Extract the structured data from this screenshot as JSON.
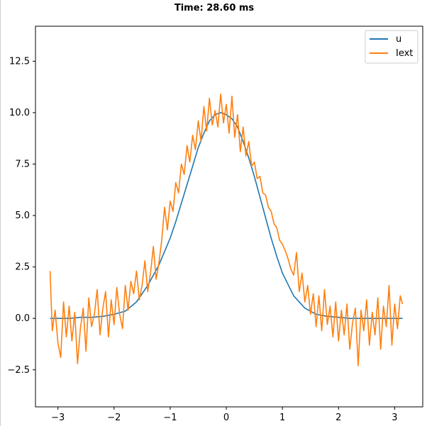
{
  "chart_data": {
    "type": "line",
    "title": "Time: 28.60 ms",
    "xlabel": "",
    "ylabel": "",
    "xlim": [
      -3.4,
      3.5
    ],
    "ylim": [
      -4.3,
      14.2
    ],
    "xticks": [
      -3,
      -2,
      -1,
      0,
      1,
      2,
      3
    ],
    "yticks": [
      -2.5,
      0.0,
      2.5,
      5.0,
      7.5,
      10.0,
      12.5
    ],
    "xtick_labels": [
      "−3",
      "−2",
      "−1",
      "0",
      "1",
      "2",
      "3"
    ],
    "ytick_labels": [
      "−2.5",
      "0.0",
      "2.5",
      "5.0",
      "7.5",
      "10.0",
      "12.5"
    ],
    "grid": false,
    "legend_position": "top-right",
    "series": [
      {
        "name": "u",
        "color": "#1f77b4",
        "description_free": true,
        "x": [
          -3.14,
          -3.0,
          -2.8,
          -2.6,
          -2.4,
          -2.2,
          -2.0,
          -1.8,
          -1.6,
          -1.4,
          -1.2,
          -1.0,
          -0.9,
          -0.8,
          -0.7,
          -0.6,
          -0.5,
          -0.4,
          -0.3,
          -0.2,
          -0.1,
          0.0,
          0.1,
          0.2,
          0.3,
          0.4,
          0.5,
          0.6,
          0.7,
          0.8,
          0.9,
          1.0,
          1.2,
          1.4,
          1.6,
          1.8,
          2.0,
          2.2,
          2.4,
          2.6,
          2.8,
          3.0,
          3.14
        ],
        "y": [
          0.0,
          0.0,
          0.0,
          0.05,
          0.05,
          0.1,
          0.2,
          0.35,
          0.8,
          1.6,
          2.6,
          3.9,
          4.7,
          5.6,
          6.5,
          7.4,
          8.3,
          9.0,
          9.6,
          9.9,
          10.0,
          9.9,
          9.7,
          9.3,
          8.6,
          7.8,
          6.9,
          5.9,
          4.9,
          3.9,
          3.0,
          2.2,
          1.1,
          0.5,
          0.2,
          0.1,
          0.05,
          0.0,
          0.0,
          0.0,
          0.0,
          0.0,
          0.0
        ]
      },
      {
        "name": "Iext",
        "color": "#ff7f0e",
        "x": [
          -3.14,
          -3.1,
          -3.05,
          -3.0,
          -2.95,
          -2.9,
          -2.85,
          -2.8,
          -2.75,
          -2.7,
          -2.65,
          -2.6,
          -2.55,
          -2.5,
          -2.45,
          -2.4,
          -2.35,
          -2.3,
          -2.25,
          -2.2,
          -2.15,
          -2.1,
          -2.05,
          -2.0,
          -1.95,
          -1.9,
          -1.85,
          -1.8,
          -1.75,
          -1.7,
          -1.65,
          -1.6,
          -1.55,
          -1.5,
          -1.45,
          -1.4,
          -1.35,
          -1.3,
          -1.25,
          -1.2,
          -1.15,
          -1.1,
          -1.05,
          -1.0,
          -0.95,
          -0.9,
          -0.85,
          -0.8,
          -0.75,
          -0.7,
          -0.65,
          -0.6,
          -0.55,
          -0.5,
          -0.45,
          -0.4,
          -0.35,
          -0.3,
          -0.25,
          -0.2,
          -0.15,
          -0.1,
          -0.05,
          0.0,
          0.05,
          0.1,
          0.15,
          0.2,
          0.25,
          0.3,
          0.35,
          0.4,
          0.45,
          0.5,
          0.55,
          0.6,
          0.65,
          0.7,
          0.75,
          0.8,
          0.85,
          0.9,
          0.95,
          1.0,
          1.05,
          1.1,
          1.15,
          1.2,
          1.25,
          1.3,
          1.35,
          1.4,
          1.45,
          1.5,
          1.55,
          1.6,
          1.65,
          1.7,
          1.75,
          1.8,
          1.85,
          1.9,
          1.95,
          2.0,
          2.05,
          2.1,
          2.15,
          2.2,
          2.25,
          2.3,
          2.35,
          2.4,
          2.45,
          2.5,
          2.55,
          2.6,
          2.65,
          2.7,
          2.75,
          2.8,
          2.85,
          2.9,
          2.95,
          3.0,
          3.05,
          3.1,
          3.14
        ],
        "y": [
          2.3,
          -0.6,
          0.4,
          -1.2,
          -1.9,
          0.8,
          -0.9,
          0.6,
          -1.1,
          0.3,
          -2.2,
          -0.5,
          0.5,
          -1.6,
          1.0,
          -0.4,
          0.2,
          1.4,
          -0.8,
          0.5,
          1.3,
          -0.9,
          0.9,
          -0.3,
          1.5,
          0.2,
          -0.5,
          1.6,
          0.4,
          1.8,
          1.2,
          2.3,
          0.9,
          1.6,
          2.8,
          1.3,
          2.2,
          3.5,
          1.9,
          2.7,
          3.8,
          5.4,
          4.3,
          5.7,
          5.2,
          6.6,
          6.1,
          7.5,
          7.0,
          8.4,
          7.6,
          8.9,
          8.2,
          9.6,
          8.6,
          10.3,
          9.1,
          10.7,
          9.4,
          10.1,
          9.3,
          10.9,
          9.5,
          10.4,
          9.0,
          10.8,
          8.8,
          9.9,
          8.1,
          9.3,
          7.9,
          8.6,
          7.4,
          7.6,
          6.8,
          6.9,
          6.1,
          6.0,
          5.4,
          5.2,
          4.6,
          4.4,
          3.8,
          3.6,
          3.3,
          2.9,
          2.4,
          2.1,
          3.2,
          1.3,
          2.2,
          0.8,
          1.6,
          0.2,
          1.2,
          -0.4,
          1.1,
          -0.6,
          1.4,
          -0.3,
          0.6,
          -0.9,
          0.8,
          -1.1,
          0.4,
          -0.8,
          0.7,
          -1.5,
          -0.2,
          0.5,
          -2.3,
          0.4,
          -0.6,
          0.9,
          -1.3,
          0.3,
          -0.8,
          1.0,
          -1.5,
          0.6,
          -0.4,
          1.6,
          -1.3,
          0.7,
          -0.5,
          1.1,
          0.7
        ]
      }
    ]
  }
}
